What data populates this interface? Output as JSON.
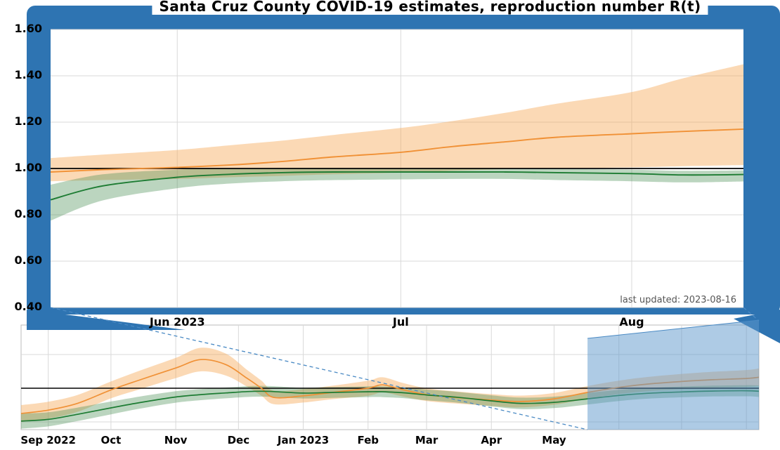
{
  "page": {
    "title": "Santa Cruz County COVID-19 estimates, reproduction number R(t)",
    "last_updated": "last updated: 2023-08-16"
  },
  "colors": {
    "panel_blue": "#2e74b2",
    "selection_blue": "rgba(93,151,204,0.5)",
    "connector_blue": "#4a8ac4",
    "orange_line": "#f09136",
    "orange_band": "rgba(246,170,90,0.45)",
    "green_line": "#1d7c33",
    "green_band": "rgba(76,145,86,0.38)",
    "reference_black": "#000000",
    "grid_gray": "#d9d9d9",
    "axis_gray": "#bbbbbb",
    "muted_text": "#555555"
  },
  "chart_data": [
    {
      "id": "zoom_panel",
      "type": "line",
      "x_axis": {
        "range": [
          "2023-05-15",
          "2023-08-16"
        ],
        "ticks": [
          {
            "date": "2023-06-01",
            "label": "Jun 2023"
          },
          {
            "date": "2023-07-01",
            "label": "Jul"
          },
          {
            "date": "2023-08-01",
            "label": "Aug"
          }
        ]
      },
      "y_axis": {
        "range": [
          0.4,
          1.6
        ],
        "reference_value": 1.0,
        "ticks": [
          {
            "value": 1.6,
            "label": "1.60"
          },
          {
            "value": 1.4,
            "label": "1.40"
          },
          {
            "value": 1.2,
            "label": "1.20"
          },
          {
            "value": 1.0,
            "label": "1.00"
          },
          {
            "value": 0.8,
            "label": "0.80"
          },
          {
            "value": 0.6,
            "label": "0.60"
          },
          {
            "value": 0.4,
            "label": "0.40"
          }
        ]
      },
      "series": [
        {
          "name": "orange-series",
          "color": "orange",
          "x": [
            "2023-05-15",
            "2023-05-22",
            "2023-06-01",
            "2023-06-08",
            "2023-06-15",
            "2023-06-22",
            "2023-07-01",
            "2023-07-08",
            "2023-07-15",
            "2023-07-22",
            "2023-08-01",
            "2023-08-08",
            "2023-08-16"
          ],
          "y": [
            0.985,
            0.995,
            1.005,
            1.015,
            1.03,
            1.05,
            1.07,
            1.095,
            1.115,
            1.135,
            1.15,
            1.16,
            1.17
          ],
          "lo": [
            0.945,
            0.95,
            0.955,
            0.962,
            0.968,
            0.975,
            0.982,
            0.99,
            0.997,
            1.0,
            1.005,
            1.01,
            1.015
          ],
          "hi": [
            1.045,
            1.06,
            1.08,
            1.1,
            1.12,
            1.145,
            1.175,
            1.205,
            1.24,
            1.28,
            1.33,
            1.39,
            1.45
          ]
        },
        {
          "name": "green-series",
          "color": "green",
          "x": [
            "2023-05-15",
            "2023-05-22",
            "2023-06-01",
            "2023-06-08",
            "2023-06-15",
            "2023-06-22",
            "2023-07-01",
            "2023-07-08",
            "2023-07-15",
            "2023-07-22",
            "2023-08-01",
            "2023-08-08",
            "2023-08-16"
          ],
          "y": [
            0.865,
            0.925,
            0.962,
            0.975,
            0.982,
            0.985,
            0.985,
            0.985,
            0.985,
            0.982,
            0.978,
            0.972,
            0.974
          ],
          "lo": [
            0.775,
            0.862,
            0.915,
            0.935,
            0.945,
            0.95,
            0.953,
            0.955,
            0.955,
            0.95,
            0.945,
            0.94,
            0.944
          ],
          "hi": [
            0.93,
            0.975,
            0.995,
            1.0,
            1.002,
            1.002,
            1.0,
            1.0,
            1.0,
            0.998,
            0.995,
            0.99,
            0.992
          ]
        }
      ]
    },
    {
      "id": "overview_panel",
      "type": "line",
      "x_axis": {
        "range": [
          "2022-08-19",
          "2023-08-07"
        ],
        "ticks": [
          {
            "date": "2022-09-01",
            "label": "Sep 2022"
          },
          {
            "date": "2022-10-01",
            "label": "Oct"
          },
          {
            "date": "2022-11-01",
            "label": "Nov"
          },
          {
            "date": "2022-12-01",
            "label": "Dec"
          },
          {
            "date": "2023-01-01",
            "label": "Jan 2023"
          },
          {
            "date": "2023-02-01",
            "label": "Feb"
          },
          {
            "date": "2023-03-01",
            "label": "Mar"
          },
          {
            "date": "2023-04-01",
            "label": "Apr"
          },
          {
            "date": "2023-05-01",
            "label": "May"
          }
        ],
        "grid_dates": [
          "2022-09-01",
          "2022-10-01",
          "2022-11-01",
          "2022-12-01",
          "2023-01-01",
          "2023-02-01",
          "2023-03-01",
          "2023-04-01",
          "2023-05-01",
          "2023-06-01",
          "2023-07-01",
          "2023-08-01"
        ]
      },
      "y_axis": {
        "range": [
          0.754,
          1.375
        ],
        "reference_value": 1.0,
        "grid_values": [
          1.2,
          0.8
        ]
      },
      "selection": {
        "start": "2023-05-17",
        "end": "2023-08-07"
      },
      "series": [
        {
          "name": "orange-series",
          "color": "orange",
          "x": [
            "2022-08-19",
            "2022-09-01",
            "2022-09-15",
            "2022-10-01",
            "2022-10-15",
            "2022-11-01",
            "2022-11-13",
            "2022-11-25",
            "2022-12-05",
            "2022-12-12",
            "2022-12-18",
            "2023-01-01",
            "2023-01-15",
            "2023-02-01",
            "2023-02-08",
            "2023-02-18",
            "2023-03-01",
            "2023-03-15",
            "2023-04-01",
            "2023-04-15",
            "2023-05-01",
            "2023-05-17",
            "2023-06-01",
            "2023-06-15",
            "2023-07-01",
            "2023-07-15",
            "2023-08-01",
            "2023-08-07"
          ],
          "y": [
            0.85,
            0.87,
            0.91,
            0.99,
            1.05,
            1.12,
            1.17,
            1.14,
            1.06,
            1.0,
            0.945,
            0.955,
            0.975,
            1.0,
            1.02,
            0.99,
            0.962,
            0.945,
            0.93,
            0.921,
            0.937,
            0.975,
            1.005,
            1.025,
            1.04,
            1.05,
            1.058,
            1.065
          ],
          "lo": [
            0.8,
            0.82,
            0.86,
            0.94,
            0.995,
            1.06,
            1.1,
            1.075,
            1.01,
            0.955,
            0.905,
            0.915,
            0.935,
            0.955,
            0.975,
            0.95,
            0.924,
            0.909,
            0.895,
            0.886,
            0.902,
            0.937,
            0.965,
            0.983,
            0.995,
            1.003,
            1.008,
            1.013
          ],
          "hi": [
            0.9,
            0.92,
            0.96,
            1.04,
            1.105,
            1.18,
            1.24,
            1.205,
            1.11,
            1.045,
            0.985,
            0.995,
            1.015,
            1.045,
            1.065,
            1.03,
            1.0,
            0.981,
            0.965,
            0.956,
            0.972,
            1.013,
            1.045,
            1.067,
            1.085,
            1.097,
            1.108,
            1.117
          ]
        },
        {
          "name": "green-series",
          "color": "green",
          "x": [
            "2022-08-19",
            "2022-09-01",
            "2022-09-15",
            "2022-10-01",
            "2022-10-15",
            "2022-11-01",
            "2022-11-13",
            "2022-11-25",
            "2022-12-05",
            "2022-12-12",
            "2022-12-18",
            "2023-01-01",
            "2023-01-15",
            "2023-02-01",
            "2023-02-08",
            "2023-02-18",
            "2023-03-01",
            "2023-03-15",
            "2023-04-01",
            "2023-04-15",
            "2023-05-01",
            "2023-05-17",
            "2023-06-01",
            "2023-06-15",
            "2023-07-01",
            "2023-07-15",
            "2023-08-01",
            "2023-08-07"
          ],
          "y": [
            0.805,
            0.815,
            0.845,
            0.883,
            0.915,
            0.948,
            0.962,
            0.972,
            0.98,
            0.982,
            0.98,
            0.971,
            0.975,
            0.979,
            0.979,
            0.973,
            0.96,
            0.947,
            0.925,
            0.91,
            0.916,
            0.937,
            0.957,
            0.97,
            0.978,
            0.983,
            0.985,
            0.982
          ],
          "lo": [
            0.76,
            0.773,
            0.805,
            0.845,
            0.879,
            0.914,
            0.929,
            0.94,
            0.948,
            0.95,
            0.948,
            0.939,
            0.943,
            0.947,
            0.947,
            0.941,
            0.928,
            0.915,
            0.892,
            0.876,
            0.882,
            0.903,
            0.924,
            0.938,
            0.946,
            0.951,
            0.952,
            0.948
          ],
          "hi": [
            0.85,
            0.857,
            0.885,
            0.921,
            0.951,
            0.982,
            0.995,
            1.004,
            1.012,
            1.014,
            1.012,
            1.003,
            1.007,
            1.011,
            1.011,
            1.005,
            0.992,
            0.979,
            0.958,
            0.944,
            0.95,
            0.971,
            0.99,
            1.002,
            1.01,
            1.015,
            1.018,
            1.016
          ]
        }
      ]
    }
  ]
}
